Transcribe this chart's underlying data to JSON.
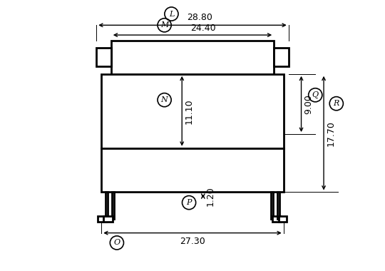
{
  "bg_color": "#ffffff",
  "line_color": "#000000",
  "lw": 2.0,
  "dlw": 1.0,
  "dim_L": "28.80",
  "dim_M": "24.40",
  "dim_N": "11.10",
  "dim_O": "27.30",
  "dim_P": "1.20",
  "dim_Q": "9.00",
  "dim_R": "17.70",
  "fs_label": 8.0,
  "fs_dim": 9.0,
  "cr": 0.018
}
